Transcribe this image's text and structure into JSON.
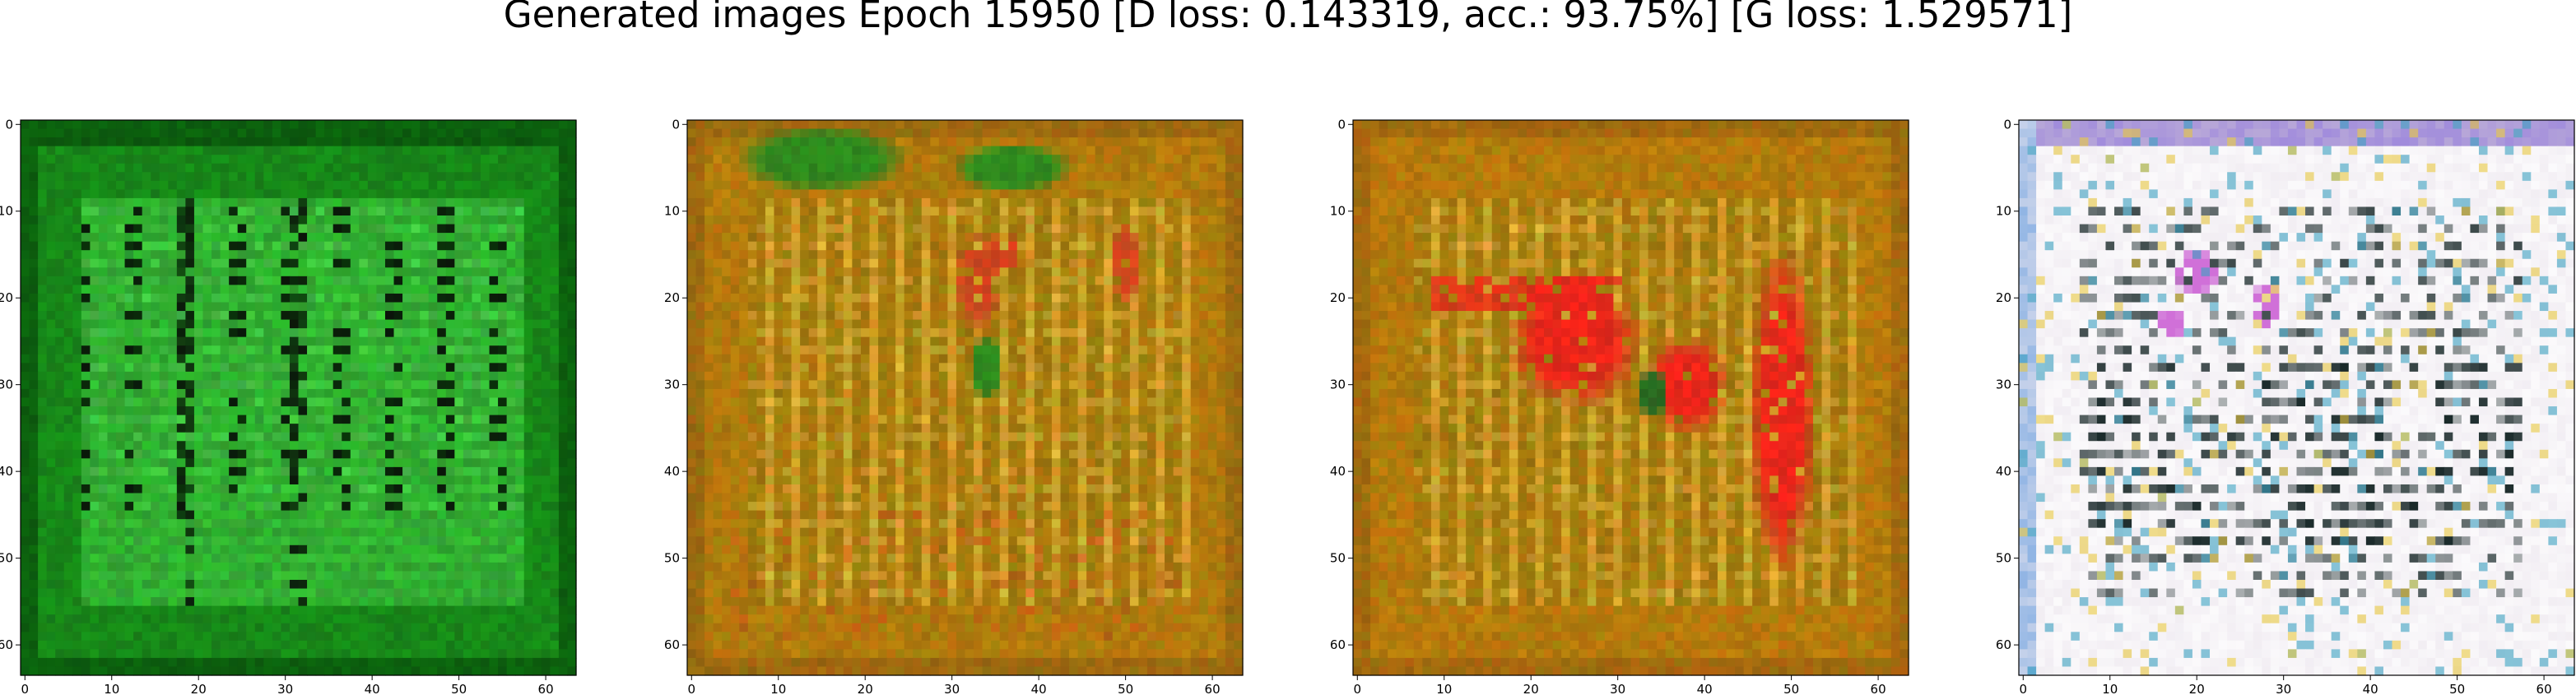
{
  "suptitle": "Generated images Epoch 15950 [D loss: 0.143319, acc.: 93.75%] [G loss: 1.529571]",
  "chart_data": [
    {
      "type": "heatmap",
      "description_colors": {
        "base": "#1e9b1e",
        "dark": "#0a4a0a",
        "bright": "#5fe05f",
        "black": "#0a150a",
        "frame": "#0d6a10"
      },
      "xlim": [
        -0.5,
        63.5
      ],
      "ylim": [
        63.5,
        -0.5
      ],
      "xticks": [
        0,
        10,
        20,
        30,
        40,
        50,
        60
      ],
      "yticks": [
        0,
        10,
        20,
        30,
        40,
        50,
        60
      ],
      "xlabel": "",
      "ylabel": "",
      "title": ""
    },
    {
      "type": "heatmap",
      "description_colors": {
        "base": "#b8860b",
        "dark": "#8a6a10",
        "bright": "#e8c050",
        "accent": "#2f8a1e",
        "accent2": "#d2451e",
        "frame": "#a86a10"
      },
      "xlim": [
        -0.5,
        63.5
      ],
      "ylim": [
        63.5,
        -0.5
      ],
      "xticks": [
        0,
        10,
        20,
        30,
        40,
        50,
        60
      ],
      "yticks": [
        0,
        10,
        20,
        30,
        40,
        50,
        60
      ],
      "xlabel": "",
      "ylabel": "",
      "title": ""
    },
    {
      "type": "heatmap",
      "description_colors": {
        "base": "#b8860b",
        "dark": "#8a6a10",
        "bright": "#e8c050",
        "accent": "#e8261a",
        "accent2": "#2a6a20",
        "frame": "#b26a0e"
      },
      "xlim": [
        -0.5,
        63.5
      ],
      "ylim": [
        63.5,
        -0.5
      ],
      "xticks": [
        0,
        10,
        20,
        30,
        40,
        50,
        60
      ],
      "yticks": [
        0,
        10,
        20,
        30,
        40,
        50,
        60
      ],
      "xlabel": "",
      "ylabel": "",
      "title": ""
    },
    {
      "type": "heatmap",
      "description_colors": {
        "base": "#ece6ee",
        "dark": "#1a2a2a",
        "bright": "#ffffff",
        "accent": "#d070d8",
        "accent2": "#3aa0c0",
        "frame": "#b8a8d8"
      },
      "xlim": [
        -0.5,
        63.5
      ],
      "ylim": [
        63.5,
        -0.5
      ],
      "xticks": [
        0,
        10,
        20,
        30,
        40,
        50,
        60
      ],
      "yticks": [
        0,
        10,
        20,
        30,
        40,
        50,
        60
      ],
      "xlabel": "",
      "ylabel": "",
      "title": ""
    }
  ]
}
